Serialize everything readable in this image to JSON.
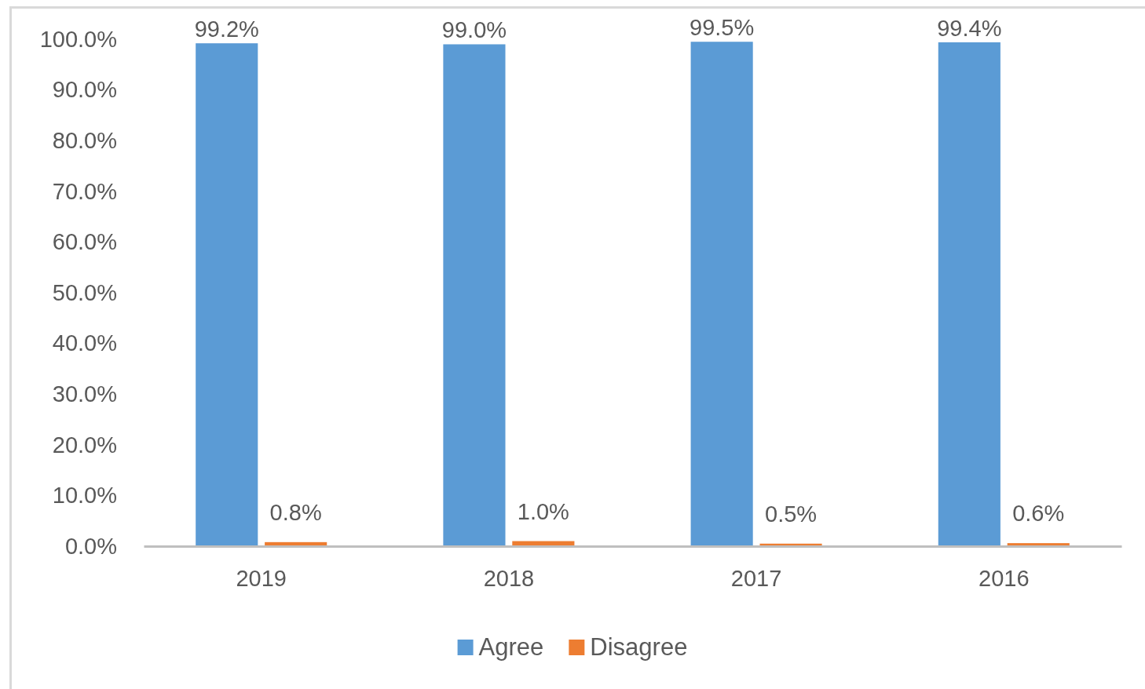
{
  "chart_data": {
    "type": "bar",
    "categories": [
      "2019",
      "2018",
      "2017",
      "2016"
    ],
    "series": [
      {
        "name": "Agree",
        "color": "#5b9bd5",
        "values": [
          99.2,
          99.0,
          99.5,
          99.4
        ],
        "value_labels": [
          "99.2%",
          "99.0%",
          "99.5%",
          "99.4%"
        ]
      },
      {
        "name": "Disagree",
        "color": "#ed7d31",
        "values": [
          0.8,
          1.0,
          0.5,
          0.6
        ],
        "value_labels": [
          "0.8%",
          "1.0%",
          "0.5%",
          "0.6%"
        ]
      }
    ],
    "ylim": [
      0,
      100
    ],
    "yticks": [
      {
        "value": 0,
        "label": "0.0%"
      },
      {
        "value": 10,
        "label": "10.0%"
      },
      {
        "value": 20,
        "label": "20.0%"
      },
      {
        "value": 30,
        "label": "30.0%"
      },
      {
        "value": 40,
        "label": "40.0%"
      },
      {
        "value": 50,
        "label": "50.0%"
      },
      {
        "value": 60,
        "label": "60.0%"
      },
      {
        "value": 70,
        "label": "70.0%"
      },
      {
        "value": 80,
        "label": "80.0%"
      },
      {
        "value": 90,
        "label": "90.0%"
      },
      {
        "value": 100,
        "label": "100.0%"
      }
    ],
    "grid": false,
    "legend": "bottom"
  }
}
